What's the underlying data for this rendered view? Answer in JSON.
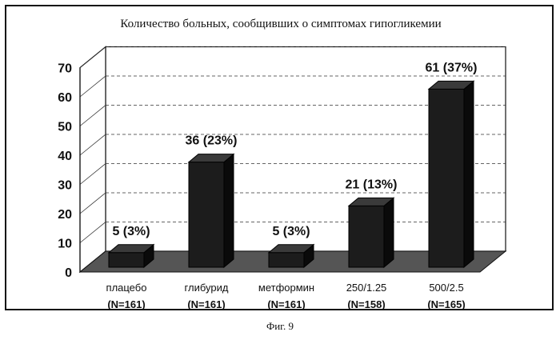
{
  "figure_caption": "Фиг. 9",
  "chart_data": {
    "type": "bar",
    "title": "Количество больных, сообщивших о симптомах гипогликемии",
    "xlabel": "",
    "ylabel": "",
    "ylim": [
      0,
      70
    ],
    "yticks": [
      "0",
      "10",
      "20",
      "30",
      "40",
      "50",
      "60",
      "70"
    ],
    "grid": true,
    "three_d": true,
    "categories": [
      {
        "name": "плацебо",
        "n": "(N=161)"
      },
      {
        "name": "глибурид",
        "n": "(N=161)"
      },
      {
        "name": "метформин",
        "n": "(N=161)"
      },
      {
        "name": "250/1.25",
        "n": "(N=158)"
      },
      {
        "name": "500/2.5",
        "n": "(N=165)"
      }
    ],
    "values": [
      5,
      36,
      5,
      21,
      61
    ],
    "data_labels": [
      "5 (3%)",
      "36 (23%)",
      "5 (3%)",
      "21 (13%)",
      "61 (37%)"
    ],
    "colors": {
      "bar": "#1c1c1c",
      "bar_side": "#0a0a0a",
      "bar_top": "#3a3a3a",
      "floor": "#555555",
      "wall": "#ffffff"
    }
  }
}
